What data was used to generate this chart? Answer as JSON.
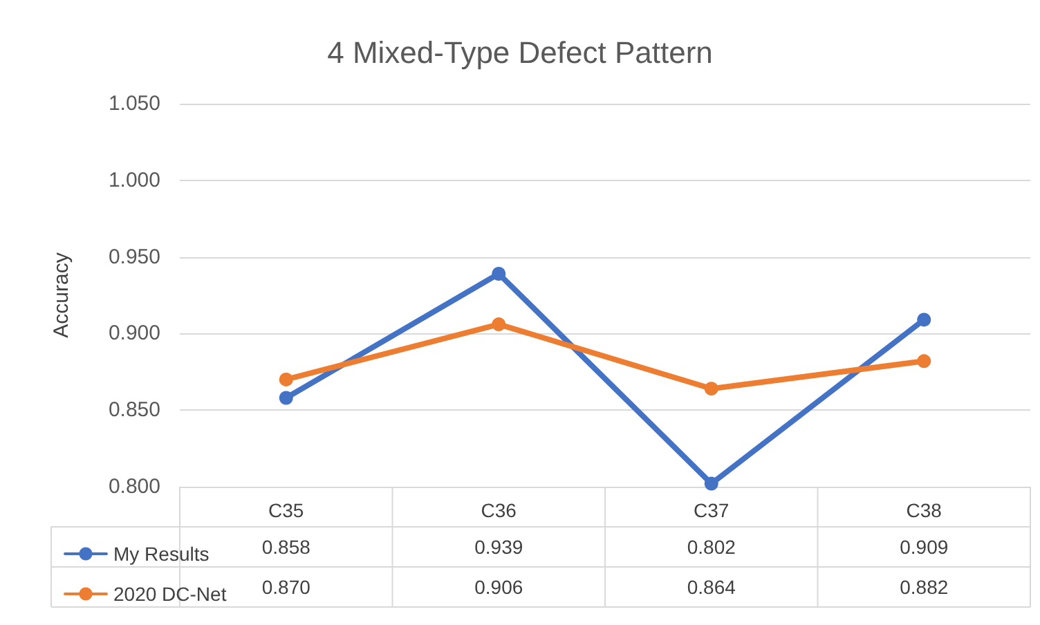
{
  "chart_data": {
    "type": "line",
    "title": "4 Mixed-Type Defect Pattern",
    "ylabel": "Accuracy",
    "categories": [
      "C35",
      "C36",
      "C37",
      "C38"
    ],
    "series": [
      {
        "name": "My Results",
        "color": "#4472c4",
        "values": [
          0.858,
          0.939,
          0.802,
          0.909
        ],
        "value_labels": [
          "0.858",
          "0.939",
          "0.802",
          "0.909"
        ]
      },
      {
        "name": "2020 DC-Net",
        "color": "#ed7d31",
        "values": [
          0.87,
          0.906,
          0.864,
          0.882
        ],
        "value_labels": [
          "0.870",
          "0.906",
          "0.864",
          "0.882"
        ]
      }
    ],
    "ylim": [
      0.8,
      1.05
    ],
    "yticks": [
      {
        "value": 0.8,
        "label": "0.800"
      },
      {
        "value": 0.85,
        "label": "0.850"
      },
      {
        "value": 0.9,
        "label": "0.900"
      },
      {
        "value": 0.95,
        "label": "0.950"
      },
      {
        "value": 1.0,
        "label": "1.000"
      },
      {
        "value": 1.05,
        "label": "1.050"
      }
    ],
    "grid": "y",
    "legend": "bottom left",
    "marker": "circle",
    "line_style": "solid"
  }
}
